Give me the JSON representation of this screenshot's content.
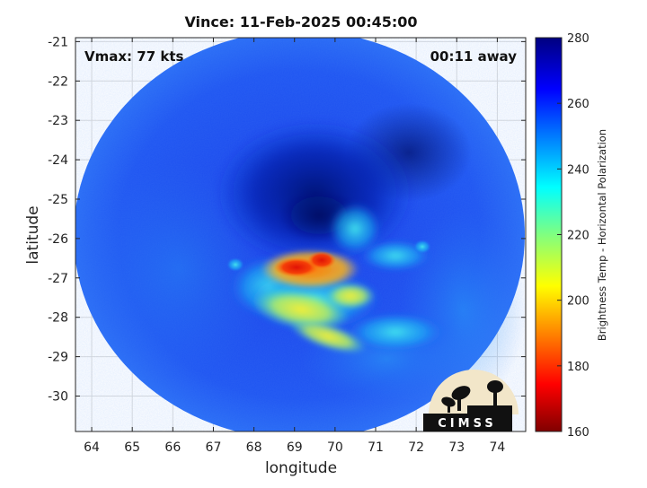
{
  "chart_data": {
    "type": "heatmap",
    "title": "Vince: 11-Feb-2025 00:45:00",
    "xlabel": "longitude",
    "ylabel": "latitude",
    "xlim": [
      63.6,
      74.7
    ],
    "ylim": [
      -30.9,
      -20.9
    ],
    "x_ticks": [
      64,
      65,
      66,
      67,
      68,
      69,
      70,
      71,
      72,
      73,
      74
    ],
    "y_ticks": [
      -21,
      -22,
      -23,
      -24,
      -25,
      -26,
      -27,
      -28,
      -29,
      -30
    ],
    "grid": true,
    "colorbar": {
      "label": "Brightness Temp - Horizontal Polarization",
      "range": [
        160,
        280
      ],
      "ticks": [
        160,
        180,
        200,
        220,
        240,
        260,
        280
      ],
      "colormap": "jet"
    },
    "annotations": {
      "vmax": "Vmax: 77 kts",
      "time_offset": "00:11 away"
    },
    "swath": {
      "center_lon": 69.15,
      "center_lat": -26.6,
      "background_temp": 262,
      "features": [
        {
          "lon": 69.7,
          "lat": -25.7,
          "temp": 277,
          "kind": "eye-cold"
        },
        {
          "lon": 69.0,
          "lat": -26.85,
          "temp": 180,
          "kind": "eyewall-warm"
        },
        {
          "lon": 69.6,
          "lat": -26.7,
          "temp": 185,
          "kind": "eyewall-warm"
        },
        {
          "lon": 69.3,
          "lat": -27.8,
          "temp": 222,
          "kind": "rainband"
        },
        {
          "lon": 69.6,
          "lat": -28.6,
          "temp": 222,
          "kind": "rainband"
        },
        {
          "lon": 70.6,
          "lat": -28.1,
          "temp": 235,
          "kind": "rainband"
        }
      ]
    }
  },
  "logo": {
    "text": "CIMSS",
    "colors": {
      "disc": "#f2e6c9",
      "silhouette": "#111111"
    }
  }
}
